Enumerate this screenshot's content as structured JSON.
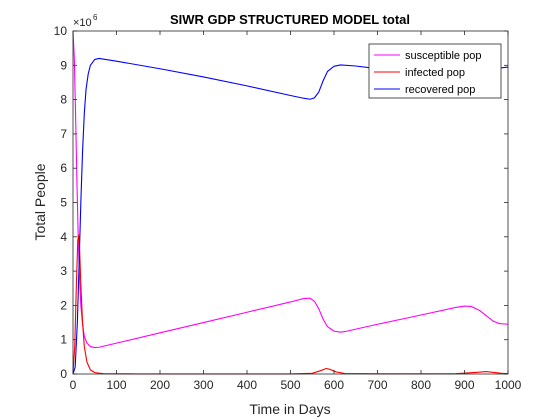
{
  "chart_data": {
    "type": "line",
    "title": "SIWR GDP STRUCTURED MODEL total",
    "xlabel": "Time in Days",
    "ylabel": "Total People",
    "xlim": [
      0,
      1000
    ],
    "ylim": [
      0,
      10
    ],
    "y_scale_label": "×10",
    "y_scale_exponent": "6",
    "x_ticks": [
      "0",
      "100",
      "200",
      "300",
      "400",
      "500",
      "600",
      "700",
      "800",
      "900",
      "1000"
    ],
    "y_ticks": [
      "0",
      "1",
      "2",
      "3",
      "4",
      "5",
      "6",
      "7",
      "8",
      "9",
      "10"
    ],
    "grid": false,
    "legend_position": "top-right",
    "series": [
      {
        "name": "susceptible pop",
        "color": "#ff00ff",
        "points": [
          [
            0,
            9.99
          ],
          [
            3,
            9.2
          ],
          [
            6,
            7.5
          ],
          [
            9,
            5.6
          ],
          [
            12,
            4.0
          ],
          [
            15,
            2.8
          ],
          [
            18,
            2.0
          ],
          [
            22,
            1.45
          ],
          [
            26,
            1.1
          ],
          [
            32,
            0.9
          ],
          [
            40,
            0.8
          ],
          [
            50,
            0.77
          ],
          [
            60,
            0.78
          ],
          [
            100,
            0.9
          ],
          [
            200,
            1.2
          ],
          [
            300,
            1.5
          ],
          [
            400,
            1.8
          ],
          [
            500,
            2.1
          ],
          [
            530,
            2.2
          ],
          [
            545,
            2.21
          ],
          [
            555,
            2.12
          ],
          [
            565,
            1.9
          ],
          [
            575,
            1.6
          ],
          [
            585,
            1.38
          ],
          [
            600,
            1.25
          ],
          [
            615,
            1.22
          ],
          [
            630,
            1.25
          ],
          [
            700,
            1.45
          ],
          [
            800,
            1.72
          ],
          [
            880,
            1.94
          ],
          [
            900,
            1.98
          ],
          [
            915,
            1.97
          ],
          [
            935,
            1.85
          ],
          [
            950,
            1.7
          ],
          [
            965,
            1.55
          ],
          [
            980,
            1.47
          ],
          [
            1000,
            1.45
          ]
        ]
      },
      {
        "name": "infected pop",
        "color": "#ff0000",
        "points": [
          [
            0,
            0.02
          ],
          [
            4,
            0.8
          ],
          [
            8,
            2.7
          ],
          [
            11,
            3.9
          ],
          [
            13,
            4.05
          ],
          [
            15,
            3.7
          ],
          [
            18,
            2.6
          ],
          [
            22,
            1.5
          ],
          [
            26,
            0.8
          ],
          [
            32,
            0.35
          ],
          [
            40,
            0.12
          ],
          [
            50,
            0.04
          ],
          [
            70,
            0.01
          ],
          [
            150,
            0.003
          ],
          [
            300,
            0.002
          ],
          [
            500,
            0.003
          ],
          [
            550,
            0.02
          ],
          [
            570,
            0.1
          ],
          [
            582,
            0.16
          ],
          [
            590,
            0.14
          ],
          [
            605,
            0.06
          ],
          [
            625,
            0.015
          ],
          [
            700,
            0.004
          ],
          [
            880,
            0.01
          ],
          [
            930,
            0.05
          ],
          [
            950,
            0.07
          ],
          [
            965,
            0.05
          ],
          [
            985,
            0.02
          ],
          [
            1000,
            0.01
          ]
        ]
      },
      {
        "name": "recovered pop",
        "color": "#0000ff",
        "points": [
          [
            0,
            0.0
          ],
          [
            5,
            0.2
          ],
          [
            10,
            1.5
          ],
          [
            14,
            3.2
          ],
          [
            18,
            5.0
          ],
          [
            22,
            6.5
          ],
          [
            26,
            7.6
          ],
          [
            30,
            8.3
          ],
          [
            35,
            8.75
          ],
          [
            40,
            9.0
          ],
          [
            50,
            9.17
          ],
          [
            60,
            9.2
          ],
          [
            100,
            9.12
          ],
          [
            200,
            8.9
          ],
          [
            300,
            8.66
          ],
          [
            400,
            8.4
          ],
          [
            500,
            8.12
          ],
          [
            530,
            8.04
          ],
          [
            545,
            8.01
          ],
          [
            555,
            8.05
          ],
          [
            565,
            8.22
          ],
          [
            575,
            8.55
          ],
          [
            585,
            8.82
          ],
          [
            600,
            8.97
          ],
          [
            615,
            9.01
          ],
          [
            650,
            8.98
          ],
          [
            700,
            8.9
          ],
          [
            800,
            8.72
          ],
          [
            880,
            8.58
          ],
          [
            900,
            8.56
          ],
          [
            915,
            8.59
          ],
          [
            935,
            8.72
          ],
          [
            955,
            8.85
          ],
          [
            975,
            8.91
          ],
          [
            1000,
            8.95
          ]
        ]
      }
    ]
  }
}
